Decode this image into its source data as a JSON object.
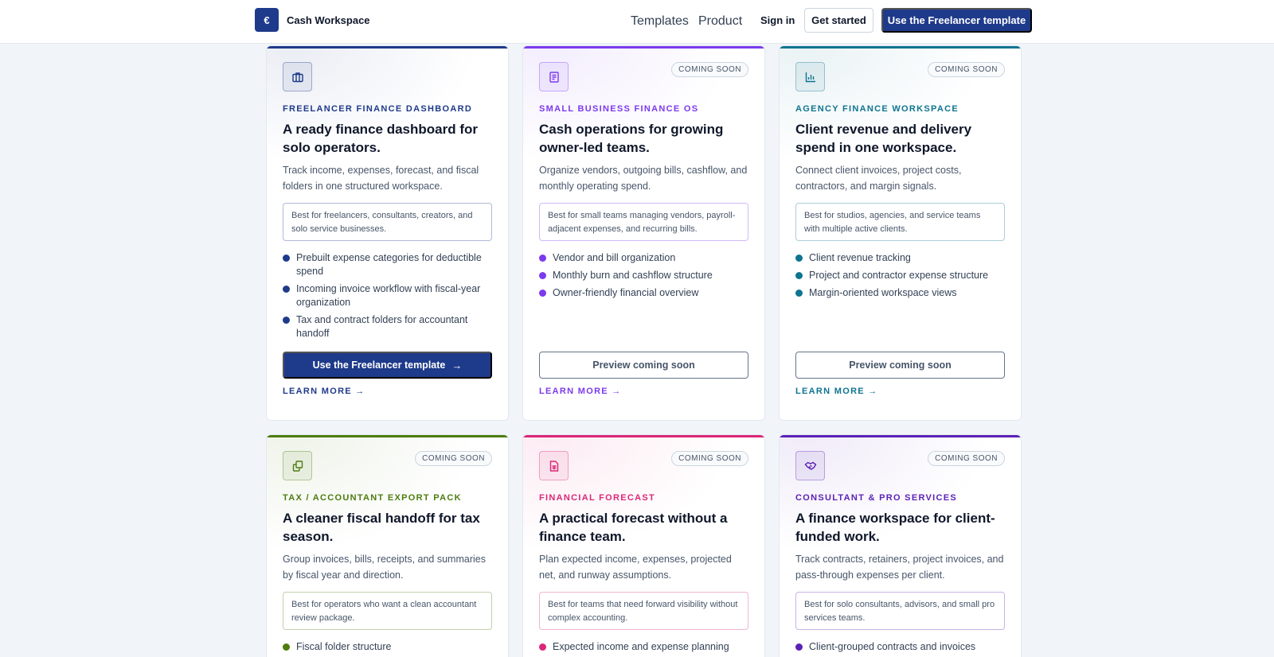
{
  "header": {
    "brand_logo_glyph": "€",
    "brand_name": "Cash Workspace",
    "nav": [
      {
        "label": "Templates"
      },
      {
        "label": "Product"
      }
    ],
    "sign_in": "Sign in",
    "get_started": "Get started",
    "primary_cta": "Use the Freelancer template"
  },
  "cards": [
    {
      "accent": "#1e3a8a",
      "icon": "briefcase-icon",
      "badge": "",
      "eyebrow": "FREELANCER FINANCE DASHBOARD",
      "title": "A ready finance dashboard for solo operators.",
      "description": "Track income, expenses, forecast, and fiscal folders in one structured workspace.",
      "best_for": "Best for freelancers, consultants, creators, and solo service businesses.",
      "features": [
        "Prebuilt expense categories for deductible spend",
        "Incoming invoice workflow with fiscal-year organization",
        "Tax and contract folders for accountant handoff"
      ],
      "cta": "Use the Freelancer template",
      "cta_style": "primary",
      "learn_more": "LEARN MORE"
    },
    {
      "accent": "#7c3aed",
      "icon": "document-icon",
      "badge": "COMING SOON",
      "eyebrow": "SMALL BUSINESS FINANCE OS",
      "title": "Cash operations for growing owner-led teams.",
      "description": "Organize vendors, outgoing bills, cashflow, and monthly operating spend.",
      "best_for": "Best for small teams managing vendors, payroll-adjacent expenses, and recurring bills.",
      "features": [
        "Vendor and bill organization",
        "Monthly burn and cashflow structure",
        "Owner-friendly financial overview"
      ],
      "cta": "Preview coming soon",
      "cta_style": "secondary",
      "learn_more": "LEARN MORE"
    },
    {
      "accent": "#0e7490",
      "icon": "bar-chart-icon",
      "badge": "COMING SOON",
      "eyebrow": "AGENCY FINANCE WORKSPACE",
      "title": "Client revenue and delivery spend in one workspace.",
      "description": "Connect client invoices, project costs, contractors, and margin signals.",
      "best_for": "Best for studios, agencies, and service teams with multiple active clients.",
      "features": [
        "Client revenue tracking",
        "Project and contractor expense structure",
        "Margin-oriented workspace views"
      ],
      "cta": "Preview coming soon",
      "cta_style": "secondary",
      "learn_more": "LEARN MORE"
    },
    {
      "accent": "#4d7c0f",
      "icon": "copy-files-icon",
      "badge": "COMING SOON",
      "eyebrow": "TAX / ACCOUNTANT EXPORT PACK",
      "title": "A cleaner fiscal handoff for tax season.",
      "description": "Group invoices, bills, receipts, and summaries by fiscal year and direction.",
      "best_for": "Best for operators who want a clean accountant review package.",
      "features": [
        "Fiscal folder structure"
      ],
      "cta": "",
      "cta_style": "secondary",
      "learn_more": ""
    },
    {
      "accent": "#db2777",
      "icon": "spreadsheet-icon",
      "badge": "COMING SOON",
      "eyebrow": "FINANCIAL FORECAST",
      "title": "A practical forecast without a finance team.",
      "description": "Plan expected income, expenses, projected net, and runway assumptions.",
      "best_for": "Best for teams that need forward visibility without complex accounting.",
      "features": [
        "Expected income and expense planning"
      ],
      "cta": "",
      "cta_style": "secondary",
      "learn_more": ""
    },
    {
      "accent": "#5b21b6",
      "icon": "handshake-icon",
      "badge": "COMING SOON",
      "eyebrow": "CONSULTANT & PRO SERVICES",
      "title": "A finance workspace for client-funded work.",
      "description": "Track contracts, retainers, project invoices, and pass-through expenses per client.",
      "best_for": "Best for solo consultants, advisors, and small pro services teams.",
      "features": [
        "Client-grouped contracts and invoices"
      ],
      "cta": "",
      "cta_style": "secondary",
      "learn_more": ""
    }
  ]
}
